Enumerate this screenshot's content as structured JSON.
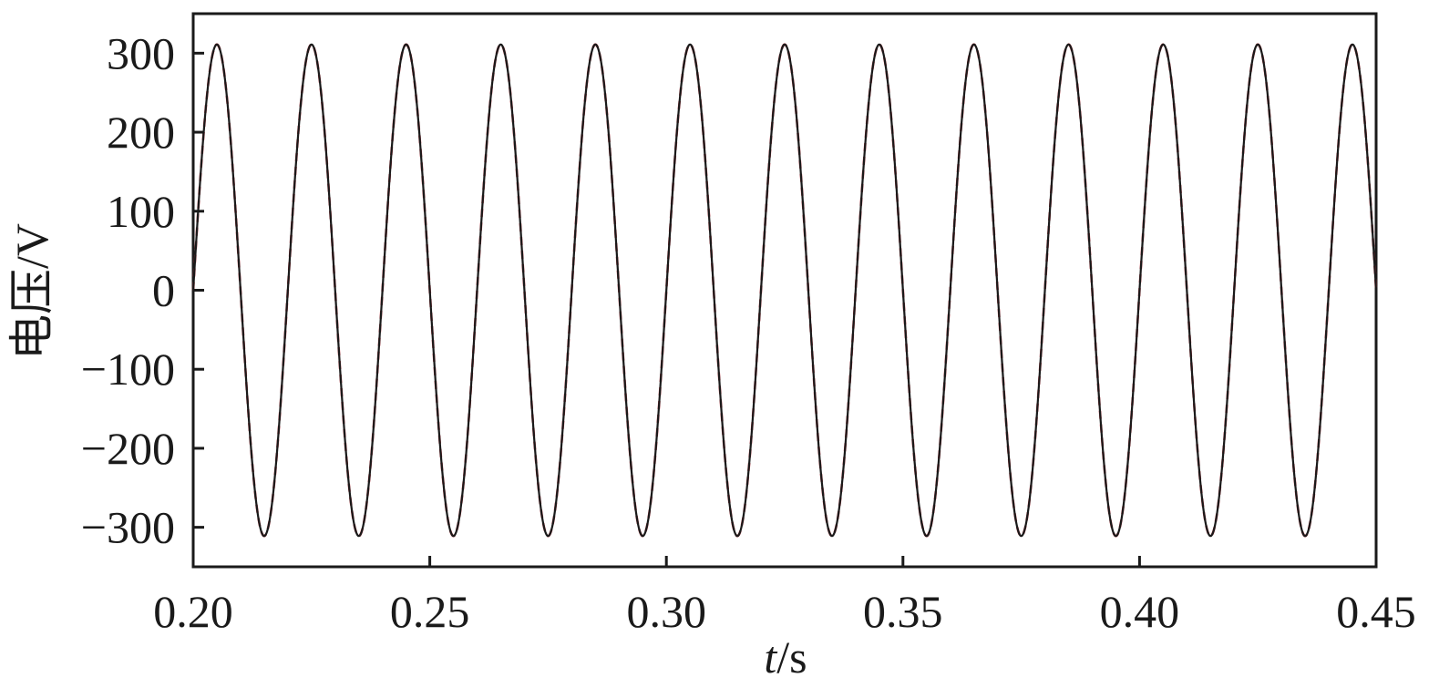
{
  "chart_data": {
    "type": "line",
    "title": "",
    "xlabel": {
      "var": "t",
      "unit": "/s"
    },
    "ylabel": "电压/V",
    "xlim": [
      0.2,
      0.45
    ],
    "ylim": [
      -350,
      350
    ],
    "xticks": [
      0.2,
      0.25,
      0.3,
      0.35,
      0.4,
      0.45
    ],
    "xtick_labels": [
      "0.20",
      "0.25",
      "0.30",
      "0.35",
      "0.40",
      "0.45"
    ],
    "yticks": [
      300,
      200,
      100,
      0,
      -100,
      -200,
      -300
    ],
    "ytick_labels": [
      "300",
      "200",
      "100",
      "0",
      "−100",
      "−200",
      "−300"
    ],
    "grid": false,
    "series": [
      {
        "color": "#b8323c",
        "dash": "dashed",
        "amplitude": 311,
        "frequency_hz": 50,
        "phase_zero_crossing_t": 0.2
      },
      {
        "color": "#1a1a1a",
        "dash": "solid",
        "amplitude": 311,
        "frequency_hz": 50,
        "phase_zero_crossing_t": 0.2
      }
    ],
    "x": [
      0.2,
      0.205,
      0.21,
      0.215,
      0.22,
      0.225,
      0.23,
      0.235,
      0.24,
      0.245,
      0.25,
      0.255,
      0.26,
      0.265,
      0.27,
      0.275,
      0.28,
      0.285,
      0.29,
      0.295,
      0.3,
      0.305,
      0.31,
      0.315,
      0.32,
      0.325,
      0.33,
      0.335,
      0.34,
      0.345,
      0.35,
      0.355,
      0.36,
      0.365,
      0.37,
      0.375,
      0.38,
      0.385,
      0.39,
      0.395,
      0.4,
      0.405,
      0.41,
      0.415,
      0.42,
      0.425,
      0.43,
      0.435,
      0.44,
      0.445,
      0.45
    ],
    "y": [
      0,
      311,
      0,
      -311,
      0,
      311,
      0,
      -311,
      0,
      311,
      0,
      -311,
      0,
      311,
      0,
      -311,
      0,
      311,
      0,
      -311,
      0,
      311,
      0,
      -311,
      0,
      311,
      0,
      -311,
      0,
      311,
      0,
      -311,
      0,
      311,
      0,
      -311,
      0,
      311,
      0,
      -311,
      0,
      311,
      0,
      -311,
      0,
      311,
      0,
      -311,
      0,
      311,
      0
    ]
  }
}
